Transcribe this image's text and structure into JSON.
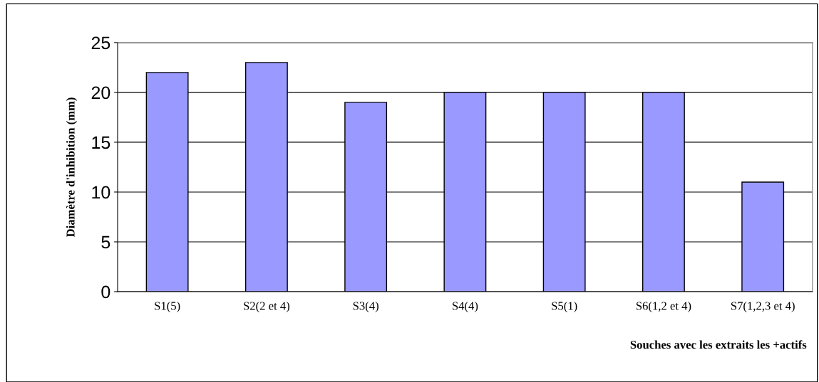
{
  "chart_data": {
    "type": "bar",
    "xlabel": "Souches avec les extraits les +actifs",
    "ylabel": "Diamètre d'inhibition (mm)",
    "categories": [
      "S1(5)",
      "S2(2 et 4)",
      "S3(4)",
      "S4(4)",
      "S5(1)",
      "S6(1,2 et 4)",
      "S7(1,2,3 et 4)"
    ],
    "values": [
      22,
      23,
      19,
      20,
      20,
      20,
      11
    ],
    "color": "#9999ff",
    "ylim": [
      0,
      25
    ],
    "yticks": [
      0,
      5,
      10,
      15,
      20,
      25
    ],
    "grid": "y",
    "legend": false
  }
}
